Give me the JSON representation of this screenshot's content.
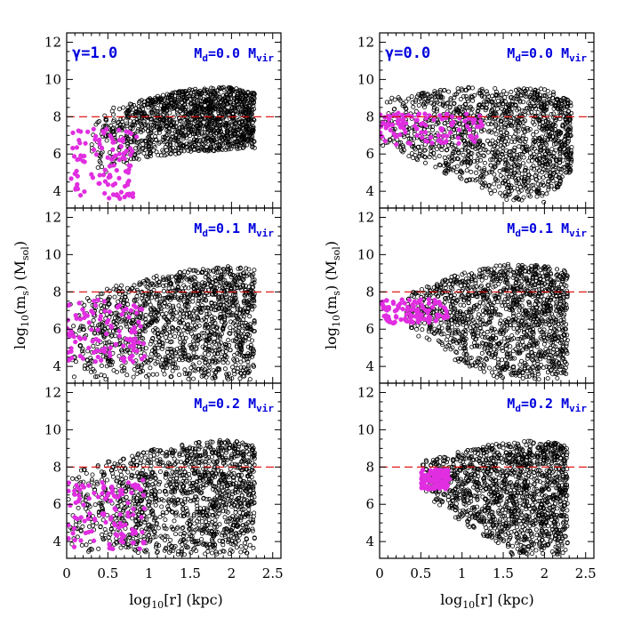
{
  "figure": {
    "xlabel_main": "log",
    "xlabel_sub": "10",
    "xlabel_rest": "[r] (kpc)",
    "ylabel_main": "log",
    "ylabel_sub1": "10",
    "ylabel_mid": "(m",
    "ylabel_sub2": "s",
    "ylabel_mid2": ") (M",
    "ylabel_sub3": "sol",
    "ylabel_end": ")"
  },
  "colors": {
    "points": "#000000",
    "highlight": "#e02ee0",
    "threshold": "#dd0000",
    "label": "#0000dd"
  },
  "chart_data": [
    {
      "type": "scatter",
      "column": "left",
      "row": 0,
      "gamma_label": "γ=1.0",
      "md_label": {
        "pre": "M",
        "sub1": "d",
        "mid": "=0.0 M",
        "sub2": "vir"
      },
      "xlim": [
        0,
        2.6
      ],
      "ylim": [
        3.1,
        12.5
      ],
      "threshold_y": 8,
      "x_ticks": [
        "0",
        "0.5",
        "1",
        "1.5",
        "2",
        "2.5"
      ],
      "y_ticks": [
        "4",
        "6",
        "8",
        "10",
        "12"
      ],
      "x_tick_labels_shown": false,
      "black_envelope": [
        [
          0.3,
          4.6,
          7.6
        ],
        [
          0.6,
          5.2,
          8.6
        ],
        [
          1.0,
          5.8,
          9.0
        ],
        [
          1.5,
          6.1,
          9.5
        ],
        [
          2.0,
          6.2,
          9.6
        ],
        [
          2.25,
          6.3,
          9.3
        ]
      ],
      "magenta_range": {
        "x": [
          0.05,
          0.85
        ],
        "y": [
          3.6,
          7.5
        ]
      }
    },
    {
      "type": "scatter",
      "column": "left",
      "row": 1,
      "gamma_label": "",
      "md_label": {
        "pre": "M",
        "sub1": "d",
        "mid": "=0.1 M",
        "sub2": "vir"
      },
      "xlim": [
        0,
        2.6
      ],
      "ylim": [
        3.1,
        12.5
      ],
      "threshold_y": 8,
      "x_ticks": [
        "0",
        "0.5",
        "1",
        "1.5",
        "2",
        "2.5"
      ],
      "y_ticks": [
        "4",
        "6",
        "8",
        "10",
        "12"
      ],
      "x_tick_labels_shown": false,
      "black_envelope": [
        [
          0.0,
          3.3,
          7.4
        ],
        [
          0.5,
          3.3,
          8.2
        ],
        [
          1.0,
          3.3,
          8.8
        ],
        [
          1.5,
          3.3,
          9.2
        ],
        [
          2.0,
          3.3,
          9.4
        ],
        [
          2.25,
          3.3,
          9.2
        ]
      ],
      "magenta_range": {
        "x": [
          0.0,
          0.95
        ],
        "y": [
          4.2,
          7.6
        ]
      }
    },
    {
      "type": "scatter",
      "column": "left",
      "row": 2,
      "gamma_label": "",
      "md_label": {
        "pre": "M",
        "sub1": "d",
        "mid": "=0.2 M",
        "sub2": "vir"
      },
      "xlim": [
        0,
        2.6
      ],
      "ylim": [
        3.1,
        12.5
      ],
      "threshold_y": 8,
      "x_ticks": [
        "0",
        "0.5",
        "1",
        "1.5",
        "2",
        "2.5"
      ],
      "y_ticks": [
        "4",
        "6",
        "8",
        "10",
        "12"
      ],
      "x_tick_labels_shown": true,
      "black_envelope": [
        [
          0.0,
          3.3,
          7.6
        ],
        [
          0.5,
          3.3,
          8.3
        ],
        [
          1.0,
          3.3,
          8.9
        ],
        [
          1.5,
          3.3,
          9.3
        ],
        [
          2.0,
          3.3,
          9.5
        ],
        [
          2.25,
          3.3,
          9.2
        ]
      ],
      "magenta_range": {
        "x": [
          0.0,
          0.95
        ],
        "y": [
          3.6,
          7.3
        ]
      }
    },
    {
      "type": "scatter",
      "column": "right",
      "row": 0,
      "gamma_label": "γ=0.0",
      "md_label": {
        "pre": "M",
        "sub1": "d",
        "mid": "=0.0 M",
        "sub2": "vir"
      },
      "xlim": [
        0,
        2.6
      ],
      "ylim": [
        3.1,
        12.5
      ],
      "threshold_y": 8,
      "x_ticks": [
        "0",
        "0.5",
        "1",
        "1.5",
        "2",
        "2.5"
      ],
      "y_ticks": [
        "4",
        "6",
        "8",
        "10",
        "12"
      ],
      "x_tick_labels_shown": false,
      "black_envelope": [
        [
          0.0,
          6.5,
          9.0
        ],
        [
          0.5,
          5.5,
          9.3
        ],
        [
          1.0,
          4.5,
          9.6
        ],
        [
          1.5,
          3.5,
          9.6
        ],
        [
          2.0,
          3.3,
          9.5
        ],
        [
          2.3,
          4.8,
          9.0
        ]
      ],
      "magenta_range": {
        "x": [
          0.0,
          1.25
        ],
        "y": [
          6.5,
          8.2
        ]
      }
    },
    {
      "type": "scatter",
      "column": "right",
      "row": 1,
      "gamma_label": "",
      "md_label": {
        "pre": "M",
        "sub1": "d",
        "mid": "=0.1 M",
        "sub2": "vir"
      },
      "xlim": [
        0,
        2.6
      ],
      "ylim": [
        3.1,
        12.5
      ],
      "threshold_y": 8,
      "x_ticks": [
        "0",
        "0.5",
        "1",
        "1.5",
        "2",
        "2.5"
      ],
      "y_ticks": [
        "4",
        "6",
        "8",
        "10",
        "12"
      ],
      "x_tick_labels_shown": false,
      "black_envelope": [
        [
          0.3,
          6.0,
          7.8
        ],
        [
          0.7,
          5.0,
          8.6
        ],
        [
          1.0,
          4.0,
          9.0
        ],
        [
          1.5,
          3.3,
          9.5
        ],
        [
          2.0,
          3.3,
          9.4
        ],
        [
          2.25,
          3.3,
          9.2
        ]
      ],
      "magenta_range": {
        "x": [
          0.0,
          0.85
        ],
        "y": [
          6.3,
          7.6
        ]
      }
    },
    {
      "type": "scatter",
      "column": "right",
      "row": 2,
      "gamma_label": "",
      "md_label": {
        "pre": "M",
        "sub1": "d",
        "mid": "=0.2 M",
        "sub2": "vir"
      },
      "xlim": [
        0,
        2.6
      ],
      "ylim": [
        3.1,
        12.5
      ],
      "threshold_y": 8,
      "x_ticks": [
        "0",
        "0.5",
        "1",
        "1.5",
        "2",
        "2.5"
      ],
      "y_ticks": [
        "4",
        "6",
        "8",
        "10",
        "12"
      ],
      "x_tick_labels_shown": true,
      "black_envelope": [
        [
          0.5,
          6.8,
          8.3
        ],
        [
          0.8,
          5.5,
          8.6
        ],
        [
          1.2,
          4.5,
          9.1
        ],
        [
          1.6,
          3.3,
          9.4
        ],
        [
          2.0,
          3.3,
          9.4
        ],
        [
          2.25,
          3.3,
          9.2
        ]
      ],
      "magenta_range": {
        "x": [
          0.5,
          0.85
        ],
        "y": [
          6.8,
          7.9
        ]
      }
    }
  ]
}
